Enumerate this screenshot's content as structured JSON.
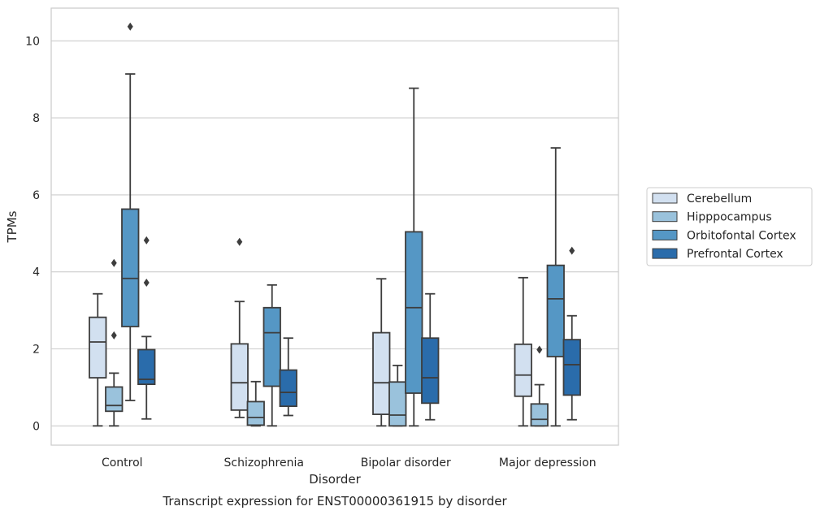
{
  "chart_data": {
    "type": "box",
    "title": "",
    "caption": "Transcript expression for ENST00000361915 by disorder",
    "xlabel": "Disorder",
    "ylabel": "TPMs",
    "ylim": [
      -0.5,
      10.85
    ],
    "yticks": [
      0,
      2,
      4,
      6,
      8,
      10
    ],
    "grid": true,
    "legend_position": "right",
    "categories": [
      "Control",
      "Schizophrenia",
      "Bipolar disorder",
      "Major depression"
    ],
    "series": [
      {
        "name": "Cerebellum",
        "color": "#d2e0f0",
        "boxes": [
          {
            "whisker_low": 0,
            "q1": 1.25,
            "median": 2.18,
            "q3": 2.82,
            "whisker_high": 3.43,
            "outliers": []
          },
          {
            "whisker_low": 0.22,
            "q1": 0.41,
            "median": 1.12,
            "q3": 2.13,
            "whisker_high": 3.23,
            "outliers": [
              4.78
            ]
          },
          {
            "whisker_low": 0,
            "q1": 0.3,
            "median": 1.12,
            "q3": 2.42,
            "whisker_high": 3.82,
            "outliers": []
          },
          {
            "whisker_low": 0,
            "q1": 0.77,
            "median": 1.32,
            "q3": 2.12,
            "whisker_high": 3.85,
            "outliers": []
          }
        ]
      },
      {
        "name": "Hipppocampus",
        "color": "#9ac2dc",
        "boxes": [
          {
            "whisker_low": 0,
            "q1": 0.38,
            "median": 0.53,
            "q3": 1.01,
            "whisker_high": 1.37,
            "outliers": [
              2.35,
              4.23
            ]
          },
          {
            "whisker_low": 0,
            "q1": 0.02,
            "median": 0.22,
            "q3": 0.63,
            "whisker_high": 1.15,
            "outliers": []
          },
          {
            "whisker_low": 0,
            "q1": 0,
            "median": 0.28,
            "q3": 1.14,
            "whisker_high": 1.57,
            "outliers": []
          },
          {
            "whisker_low": 0,
            "q1": 0,
            "median": 0.17,
            "q3": 0.57,
            "whisker_high": 1.07,
            "outliers": [
              1.98
            ]
          }
        ]
      },
      {
        "name": "Orbitofontal Cortex",
        "color": "#5597c5",
        "boxes": [
          {
            "whisker_low": 0.66,
            "q1": 2.58,
            "median": 3.83,
            "q3": 5.63,
            "whisker_high": 9.14,
            "outliers": [
              10.37
            ]
          },
          {
            "whisker_low": 0,
            "q1": 1.03,
            "median": 2.42,
            "q3": 3.07,
            "whisker_high": 3.66,
            "outliers": []
          },
          {
            "whisker_low": 0,
            "q1": 0.85,
            "median": 3.07,
            "q3": 5.04,
            "whisker_high": 8.77,
            "outliers": []
          },
          {
            "whisker_low": 0,
            "q1": 1.8,
            "median": 3.3,
            "q3": 4.17,
            "whisker_high": 7.22,
            "outliers": []
          }
        ]
      },
      {
        "name": "Prefrontal Cortex",
        "color": "#2a6cab",
        "boxes": [
          {
            "whisker_low": 0.18,
            "q1": 1.08,
            "median": 1.21,
            "q3": 1.98,
            "whisker_high": 2.32,
            "outliers": [
              3.72,
              4.82
            ]
          },
          {
            "whisker_low": 0.27,
            "q1": 0.51,
            "median": 0.87,
            "q3": 1.45,
            "whisker_high": 2.28,
            "outliers": []
          },
          {
            "whisker_low": 0.16,
            "q1": 0.59,
            "median": 1.25,
            "q3": 2.28,
            "whisker_high": 3.43,
            "outliers": []
          },
          {
            "whisker_low": 0.16,
            "q1": 0.8,
            "median": 1.59,
            "q3": 2.24,
            "whisker_high": 2.86,
            "outliers": [
              4.55
            ]
          }
        ]
      }
    ]
  }
}
